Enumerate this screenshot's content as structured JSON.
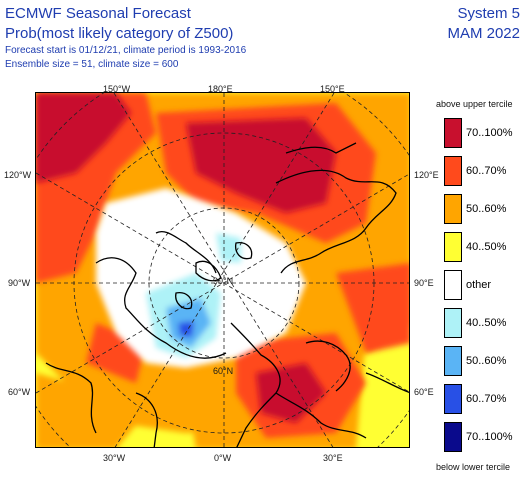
{
  "header": {
    "title_line1": "ECMWF Seasonal Forecast",
    "title_line2": "Prob(most likely category of Z500)",
    "forecast_info": "Forecast start is 01/12/21, climate period is 1993-2016",
    "ensemble_info": "Ensemble size = 51, climate size = 600",
    "system": "System 5",
    "season": "MAM 2022"
  },
  "map": {
    "longitude_labels": {
      "top": [
        "150°W",
        "180°E",
        "150°E"
      ],
      "left": [
        "120°W",
        "90°W",
        "60°W"
      ],
      "right": [
        "120°E",
        "90°E",
        "60°E"
      ],
      "bottom": [
        "30°W",
        "0°W",
        "30°E"
      ]
    },
    "latitude_labels": [
      "90°N",
      "60°N"
    ]
  },
  "legend": {
    "top_label": "above upper tercile",
    "bottom_label": "below lower tercile",
    "items": [
      {
        "label": "70..100%",
        "color": "#c8102e"
      },
      {
        "label": "60..70%",
        "color": "#ff4a1c"
      },
      {
        "label": "50..60%",
        "color": "#ffa500"
      },
      {
        "label": "40..50%",
        "color": "#ffff33"
      },
      {
        "label": "other",
        "color": "#ffffff"
      },
      {
        "label": "40..50%",
        "color": "#aef2f7"
      },
      {
        "label": "50..60%",
        "color": "#5ab4f5"
      },
      {
        "label": "60..70%",
        "color": "#2850e6"
      },
      {
        "label": "70..100%",
        "color": "#0a0a8c"
      }
    ]
  }
}
